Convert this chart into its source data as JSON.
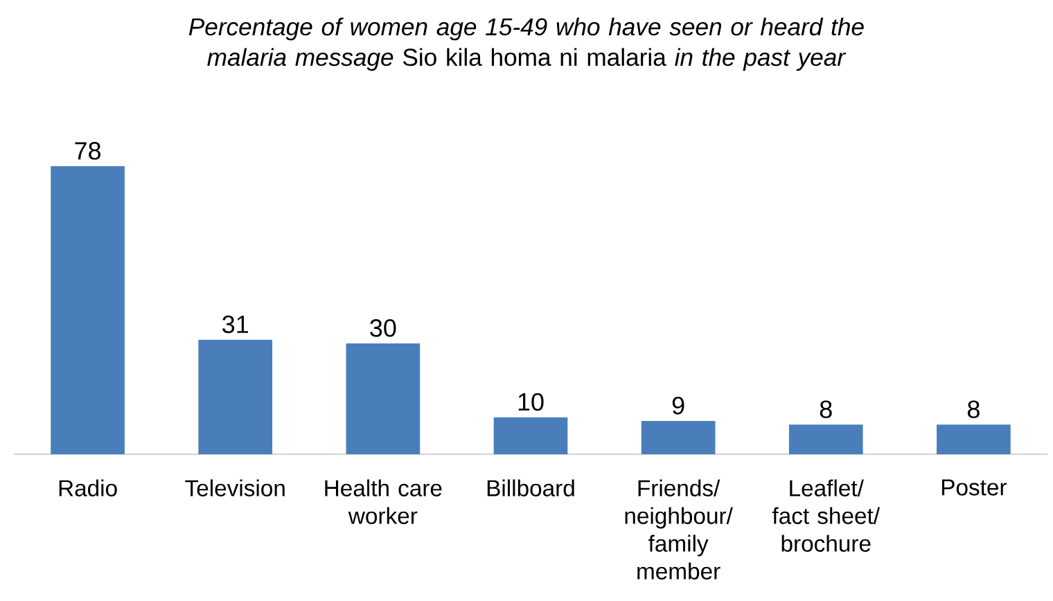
{
  "chart_data": {
    "type": "bar",
    "title": "*Percentage of women age 15-49 who have seen or heard the malaria message* Sio kila homa ni malaria *in the past year*",
    "categories": [
      "Radio",
      "Television",
      "Health care worker",
      "Billboard",
      "Friends/ neighbour/ family member",
      "Leaflet/ fact sheet/ brochure",
      "Poster"
    ],
    "values": [
      78,
      31,
      30,
      10,
      9,
      8,
      8
    ],
    "color": "#4a7ebb",
    "data_labels": true
  }
}
